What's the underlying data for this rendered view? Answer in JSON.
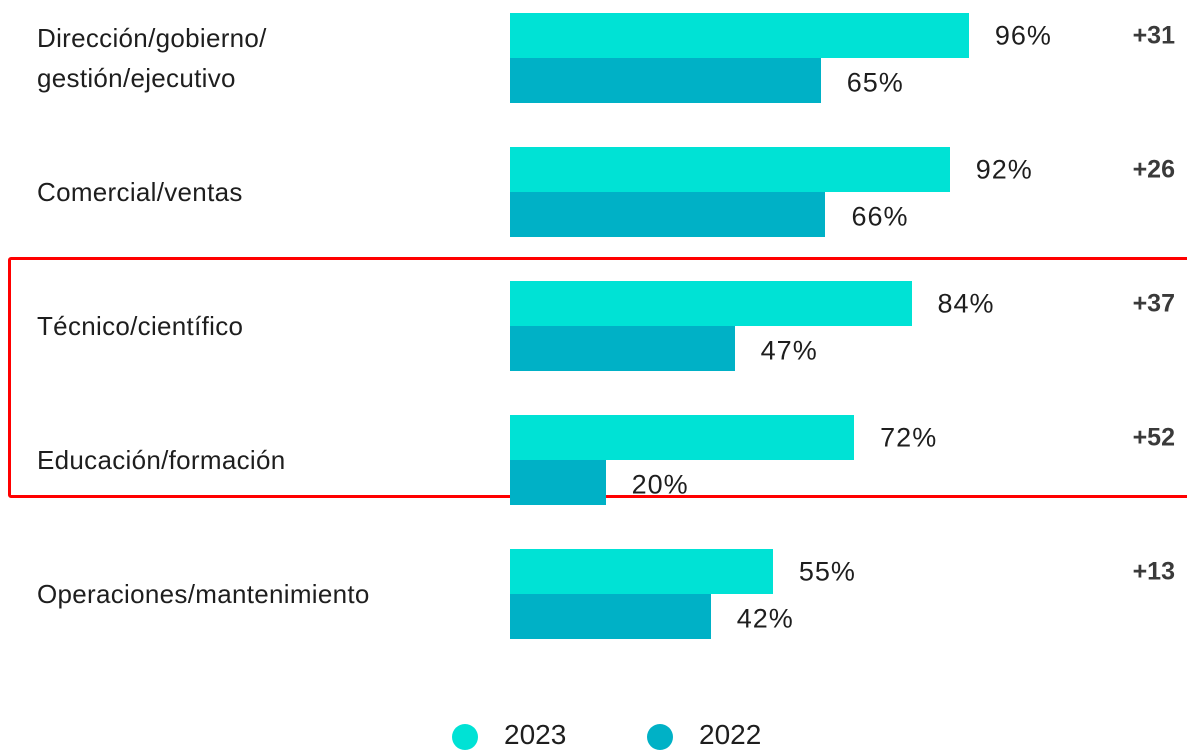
{
  "chart_data": {
    "type": "hbar",
    "categories": [
      "Dirección/gobierno/\ngestión/ejecutivo",
      "Comercial/ventas",
      "Técnico/científico",
      "Educación/formación",
      "Operaciones/mantenimiento"
    ],
    "series": [
      {
        "name": "2023",
        "color": "#00e2d5",
        "values": [
          96,
          92,
          84,
          72,
          55
        ],
        "value_labels": [
          "96%",
          "92%",
          "84%",
          "72%",
          "55%"
        ]
      },
      {
        "name": "2022",
        "color": "#00b1c6",
        "values": [
          65,
          66,
          47,
          20,
          42
        ],
        "value_labels": [
          "65%",
          "66%",
          "47%",
          "20%",
          "42%"
        ]
      }
    ],
    "differences": {
      "values": [
        31,
        26,
        37,
        52,
        13
      ],
      "value_labels": [
        "+31",
        "+26",
        "+37",
        "+52",
        "+13"
      ]
    },
    "xlim": [
      0,
      100
    ],
    "legend": "bottom"
  }
}
